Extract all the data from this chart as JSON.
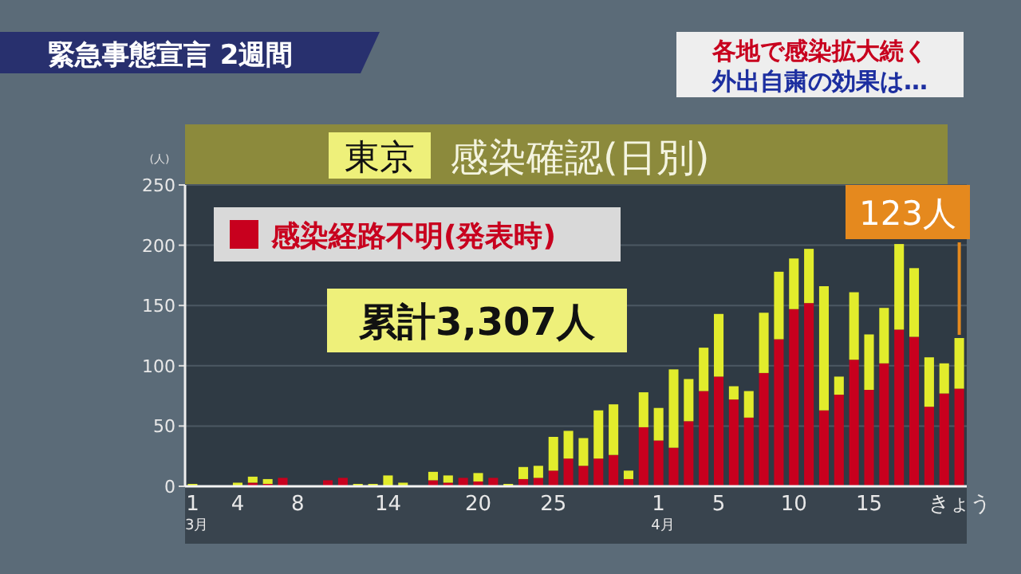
{
  "chart_data": {
    "type": "bar",
    "stacked": true,
    "title": "東京",
    "subtitle": "感染確認(日別)",
    "ylabel": "(人)",
    "categories": [
      "1\n3月",
      null,
      null,
      "4",
      null,
      null,
      null,
      "8",
      null,
      null,
      null,
      null,
      null,
      "14",
      null,
      null,
      null,
      null,
      null,
      "20",
      null,
      null,
      null,
      null,
      "25",
      null,
      null,
      null,
      null,
      null,
      null,
      "1\n4月",
      null,
      null,
      null,
      "5",
      null,
      null,
      null,
      null,
      "10",
      null,
      null,
      null,
      null,
      "15",
      null,
      null,
      null,
      null,
      null,
      "きょう"
    ],
    "series": [
      {
        "name": "感染経路不明(発表時)",
        "color": "#c8001e",
        "values": [
          0,
          0,
          0,
          null,
          3,
          2,
          7,
          0,
          0,
          5,
          7,
          0,
          0,
          null,
          0,
          0,
          5,
          3,
          7,
          4,
          7,
          0,
          6,
          7,
          13,
          23,
          17,
          23,
          26,
          6,
          49,
          38,
          32,
          54,
          79,
          91,
          72,
          57,
          94,
          122,
          147,
          152,
          63,
          76,
          105,
          80,
          102,
          130,
          124,
          66,
          77,
          81
        ]
      },
      {
        "color": "#e2ec2c",
        "values": [
          2,
          0,
          null,
          3,
          5,
          4,
          0,
          0,
          0,
          0,
          0,
          2,
          2,
          9,
          3,
          0,
          7,
          6,
          0,
          7,
          0,
          2,
          10,
          10,
          28,
          23,
          23,
          40,
          42,
          7,
          29,
          27,
          65,
          35,
          36,
          52,
          11,
          22,
          50,
          56,
          42,
          45,
          103,
          15,
          56,
          46,
          46,
          71,
          57,
          41,
          25,
          42
        ]
      }
    ],
    "ylim": [
      0,
      250
    ],
    "yticks": [
      0,
      50,
      100,
      150,
      200,
      250
    ],
    "grid": "y",
    "legend": "top left",
    "annotations": [
      "緊急事態宣言 2週間",
      "各地で感染拡大続く",
      "外出自粛の効果は…",
      "累計3,307人",
      {
        "text": "123人",
        "x": "きょう",
        "y": 123
      }
    ]
  }
}
